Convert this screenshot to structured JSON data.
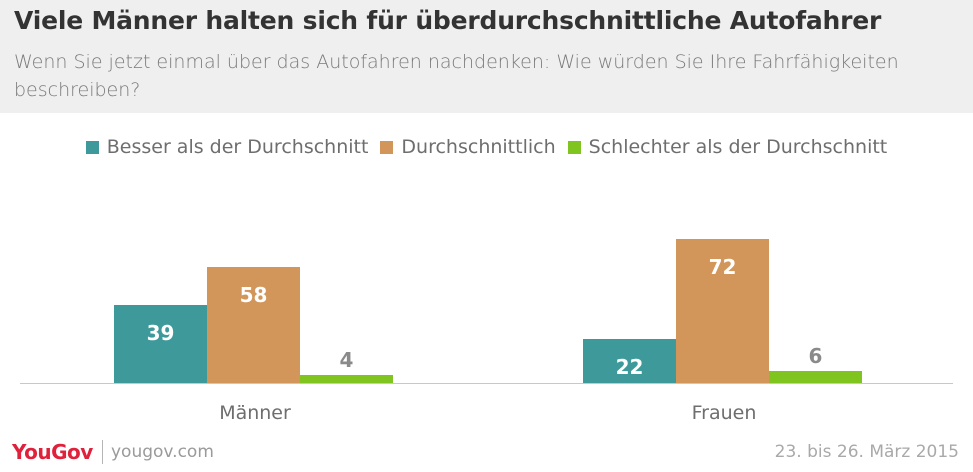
{
  "brand": {
    "logo": "YouGov",
    "site": "yougov.com"
  },
  "footer": {
    "date": "23. bis 26. März 2015"
  },
  "colors": {
    "besser": "#3e9a9a",
    "durchschnittlich": "#d2965a",
    "schlechter": "#7fc41f",
    "inside_label": "#ffffff",
    "outside_label": "#8a8a8a",
    "logo": "#e0213b"
  },
  "chart_data": {
    "type": "bar",
    "title": "Viele Männer halten sich für überdurchschnittliche Autofahrer",
    "subtitle": "Wenn Sie jetzt einmal über das Autofahren nachdenken: Wie würden Sie Ihre Fahrfähigkeiten beschreiben?",
    "categories": [
      "Männer",
      "Frauen"
    ],
    "series": [
      {
        "name": "Besser als der Durchschnitt",
        "values": [
          39,
          22
        ]
      },
      {
        "name": "Durchschnittlich",
        "values": [
          58,
          72
        ]
      },
      {
        "name": "Schlechter als der Durchschnitt",
        "values": [
          4,
          6
        ]
      }
    ],
    "ylim": [
      0,
      76
    ],
    "grid": false,
    "legend": "top-center",
    "data_labels": true
  }
}
